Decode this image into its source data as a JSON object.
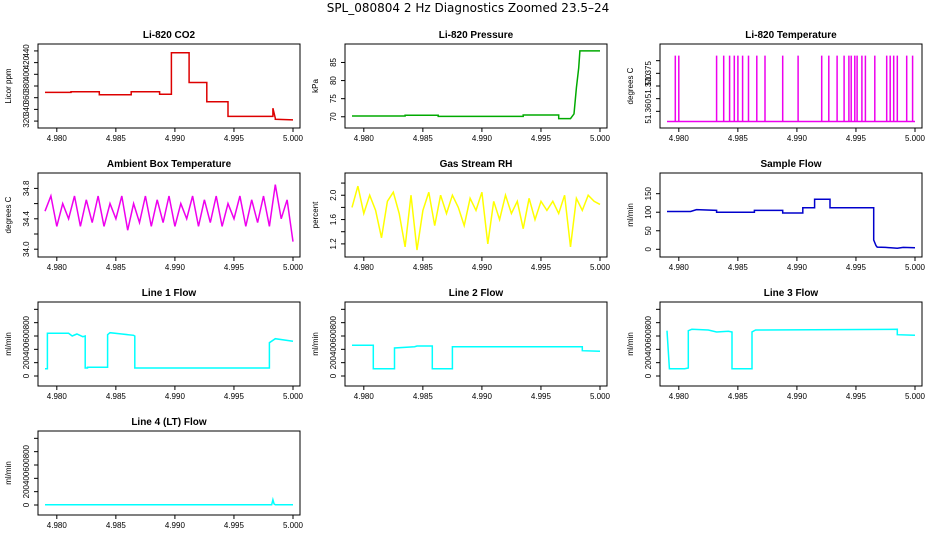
{
  "title": "SPL_080804  2 Hz Diagnostics Zoomed 23.5–24",
  "chart_data": [
    {
      "type": "line",
      "title": "Li-820 CO2",
      "ylabel": "Licor ppm",
      "color": "#dd0000",
      "xlim": [
        4.979,
        5.0
      ],
      "xticks": [
        "4.980",
        "4.985",
        "4.990",
        "4.995",
        "5.000"
      ],
      "ylim": [
        315,
        445
      ],
      "yticks": [
        320,
        340,
        360,
        380,
        400,
        420,
        440
      ],
      "x": [
        4.979,
        4.9812,
        4.9812,
        4.9836,
        4.9836,
        4.9863,
        4.9863,
        4.9887,
        4.9887,
        4.9897,
        4.9897,
        4.9912,
        4.9912,
        4.9927,
        4.9927,
        4.9945,
        4.9945,
        4.9983,
        4.9983,
        4.9985,
        4.9985,
        5.0
      ],
      "y": [
        369,
        369,
        370,
        370,
        365,
        365,
        370,
        370,
        366,
        366,
        437,
        437,
        386,
        386,
        353,
        353,
        328,
        328,
        342,
        325,
        323,
        322
      ]
    },
    {
      "type": "line",
      "title": "Li-820 Pressure",
      "ylabel": "kPa",
      "color": "#00aa00",
      "xlim": [
        4.979,
        5.0
      ],
      "xticks": [
        "4.980",
        "4.985",
        "4.990",
        "4.995",
        "5.000"
      ],
      "ylim": [
        68,
        89
      ],
      "yticks": [
        70,
        75,
        80,
        85
      ],
      "x": [
        4.979,
        4.9835,
        4.9835,
        4.9863,
        4.9863,
        4.9935,
        4.9935,
        4.9965,
        4.9965,
        4.9975,
        4.9978,
        4.998,
        4.9982,
        4.9983,
        5.0
      ],
      "y": [
        70.2,
        70.2,
        70.4,
        70.4,
        70.1,
        70.1,
        70.5,
        70.5,
        69.5,
        69.5,
        70.8,
        78,
        83.5,
        88.2,
        88.2
      ]
    },
    {
      "type": "line",
      "title": "Li-820 Temperature",
      "ylabel": "degrees C",
      "color": "#ee00ee",
      "xlim": [
        4.979,
        5.0
      ],
      "xticks": [
        "4.980",
        "4.985",
        "4.990",
        "4.995",
        "5.000"
      ],
      "ylim": [
        51.355,
        51.385
      ],
      "yticks": [
        51.36,
        51.365,
        51.37,
        51.375,
        51.38
      ],
      "yticklabels": [
        "51.360",
        "",
        "51.370",
        "51.375",
        ""
      ],
      "x": [
        4.979,
        4.9797,
        4.9797,
        4.9797,
        4.98,
        4.98,
        4.98,
        4.9832,
        4.9832,
        4.9832,
        4.9838,
        4.9838,
        4.9838,
        4.9843,
        4.9843,
        4.9843,
        4.9847,
        4.9847,
        4.9847,
        4.985,
        4.985,
        4.985,
        4.9854,
        4.9854,
        4.9854,
        4.9859,
        4.9859,
        4.9859,
        4.9866,
        4.9866,
        4.9866,
        4.9873,
        4.9873,
        4.9873,
        4.9888,
        4.9888,
        4.9888,
        4.9901,
        4.9901,
        4.9901,
        4.9921,
        4.9921,
        4.9921,
        4.9927,
        4.9927,
        4.9927,
        4.9934,
        4.9934,
        4.9934,
        4.994,
        4.994,
        4.994,
        4.9944,
        4.9944,
        4.9944,
        4.9946,
        4.9946,
        4.9946,
        4.9949,
        4.9949,
        4.9949,
        4.9951,
        4.9951,
        4.9951,
        4.9955,
        4.9955,
        4.9955,
        4.9958,
        4.9958,
        4.9958,
        4.9966,
        4.9966,
        4.9966,
        4.9976,
        4.9976,
        4.9976,
        4.9979,
        4.9979,
        4.9979,
        4.9982,
        4.9982,
        4.9982,
        4.9985,
        4.9985,
        4.9985,
        4.9993,
        4.9993,
        4.9993,
        4.9998,
        4.9998,
        4.9998,
        5.0
      ],
      "y": [
        51.356,
        51.356,
        51.382,
        51.356,
        51.356,
        51.382,
        51.356,
        51.356,
        51.382,
        51.356,
        51.356,
        51.382,
        51.356,
        51.356,
        51.382,
        51.356,
        51.356,
        51.382,
        51.356,
        51.356,
        51.382,
        51.356,
        51.356,
        51.382,
        51.356,
        51.356,
        51.382,
        51.356,
        51.356,
        51.382,
        51.356,
        51.356,
        51.382,
        51.356,
        51.356,
        51.382,
        51.356,
        51.356,
        51.382,
        51.356,
        51.356,
        51.382,
        51.356,
        51.356,
        51.382,
        51.356,
        51.356,
        51.382,
        51.356,
        51.356,
        51.382,
        51.356,
        51.356,
        51.382,
        51.356,
        51.356,
        51.382,
        51.356,
        51.356,
        51.382,
        51.356,
        51.356,
        51.382,
        51.356,
        51.356,
        51.382,
        51.356,
        51.356,
        51.382,
        51.356,
        51.356,
        51.382,
        51.356,
        51.356,
        51.382,
        51.356,
        51.356,
        51.382,
        51.356,
        51.356,
        51.382,
        51.356,
        51.356,
        51.382,
        51.356,
        51.356,
        51.382,
        51.356,
        51.356,
        51.382,
        51.356,
        51.356
      ]
    },
    {
      "type": "line",
      "title": "Ambient Box Temperature",
      "ylabel": "degrees C",
      "color": "#ee00ee",
      "xlim": [
        4.979,
        5.0
      ],
      "xticks": [
        "4.980",
        "4.985",
        "4.990",
        "4.995",
        "5.000"
      ],
      "ylim": [
        33.95,
        34.95
      ],
      "yticks": [
        34.0,
        34.2,
        34.4,
        34.6,
        34.8
      ],
      "yticklabels": [
        "34.0",
        "",
        "34.4",
        "",
        "34.8"
      ],
      "x": [
        4.979,
        4.9795,
        4.98,
        4.9805,
        4.981,
        4.9815,
        4.982,
        4.9825,
        4.983,
        4.9835,
        4.984,
        4.9845,
        4.985,
        4.9855,
        4.986,
        4.9865,
        4.987,
        4.9875,
        4.988,
        4.9885,
        4.989,
        4.9895,
        4.99,
        4.9905,
        4.991,
        4.9915,
        4.992,
        4.9925,
        4.993,
        4.9935,
        4.994,
        4.9945,
        4.995,
        4.9955,
        4.996,
        4.9965,
        4.997,
        4.9975,
        4.998,
        4.9985,
        4.999,
        4.9995,
        5.0
      ],
      "y": [
        34.5,
        34.7,
        34.3,
        34.6,
        34.4,
        34.7,
        34.3,
        34.65,
        34.35,
        34.7,
        34.3,
        34.6,
        34.4,
        34.7,
        34.25,
        34.6,
        34.35,
        34.7,
        34.3,
        34.65,
        34.35,
        34.7,
        34.3,
        34.6,
        34.4,
        34.7,
        34.3,
        34.65,
        34.35,
        34.7,
        34.3,
        34.6,
        34.4,
        34.7,
        34.3,
        34.65,
        34.35,
        34.7,
        34.3,
        34.85,
        34.4,
        34.65,
        34.1
      ]
    },
    {
      "type": "line",
      "title": "Gas Stream RH",
      "ylabel": "percent",
      "color": "#ffff00",
      "xlim": [
        4.979,
        5.0
      ],
      "xticks": [
        "4.980",
        "4.985",
        "4.990",
        "4.995",
        "5.000"
      ],
      "ylim": [
        1.05,
        2.3
      ],
      "yticks": [
        1.2,
        1.4,
        1.6,
        1.8,
        2.0,
        2.2
      ],
      "yticklabels": [
        "1.2",
        "",
        "1.6",
        "",
        "2.0",
        ""
      ],
      "x": [
        4.979,
        4.9795,
        4.98,
        4.9805,
        4.981,
        4.9815,
        4.982,
        4.9825,
        4.983,
        4.9835,
        4.984,
        4.9845,
        4.985,
        4.9855,
        4.986,
        4.9865,
        4.987,
        4.9875,
        4.988,
        4.9885,
        4.989,
        4.9895,
        4.99,
        4.9905,
        4.991,
        4.9915,
        4.992,
        4.9925,
        4.993,
        4.9935,
        4.994,
        4.9945,
        4.995,
        4.9955,
        4.996,
        4.9965,
        4.997,
        4.9975,
        4.998,
        4.9985,
        4.999,
        4.9995,
        5.0
      ],
      "y": [
        1.8,
        2.15,
        1.7,
        2.0,
        1.75,
        1.3,
        1.9,
        2.05,
        1.7,
        1.15,
        2.0,
        1.1,
        1.75,
        2.05,
        1.5,
        2.0,
        1.7,
        2.0,
        1.8,
        1.5,
        1.95,
        1.75,
        2.05,
        1.2,
        1.9,
        1.6,
        2.0,
        1.7,
        1.9,
        1.45,
        1.95,
        1.6,
        1.9,
        1.75,
        1.9,
        1.7,
        2.0,
        1.15,
        1.95,
        1.75,
        2.0,
        1.9,
        1.85
      ]
    },
    {
      "type": "line",
      "title": "Sample Flow",
      "ylabel": "ml/min",
      "color": "#0000cc",
      "xlim": [
        4.979,
        5.0
      ],
      "xticks": [
        "4.980",
        "4.985",
        "4.990",
        "4.995",
        "5.000"
      ],
      "ylim": [
        -10,
        195
      ],
      "yticks": [
        0,
        50,
        100,
        150
      ],
      "x": [
        4.979,
        4.981,
        4.9815,
        4.9832,
        4.9832,
        4.9864,
        4.9864,
        4.9888,
        4.9888,
        4.9905,
        4.9905,
        4.9915,
        4.9915,
        4.9928,
        4.9928,
        4.9965,
        4.9965,
        4.9967,
        4.9968,
        4.9975,
        4.9985,
        4.999,
        5.0
      ],
      "y": [
        102,
        102,
        107,
        105,
        100,
        100,
        105,
        105,
        98,
        98,
        112,
        112,
        135,
        135,
        112,
        112,
        25,
        10,
        6,
        5,
        3,
        5,
        4
      ]
    },
    {
      "type": "line",
      "title": "Line 1 Flow",
      "ylabel": "ml/min",
      "color": "#00ffff",
      "xlim": [
        4.979,
        5.0
      ],
      "xticks": [
        "4.980",
        "4.985",
        "4.990",
        "4.995",
        "5.000"
      ],
      "ylim": [
        -90,
        1050
      ],
      "yticks": [
        0,
        200,
        400,
        600,
        800,
        1000
      ],
      "yticklabels": [
        "0",
        "200",
        "400",
        "600",
        "800",
        ""
      ],
      "x": [
        4.979,
        4.9792,
        4.9792,
        4.981,
        4.9813,
        4.9817,
        4.9822,
        4.9824,
        4.9824,
        4.9826,
        4.9826,
        4.9843,
        4.9843,
        4.9845,
        4.9855,
        4.9865,
        4.9866,
        4.9866,
        4.998,
        4.998,
        4.9985,
        5.0
      ],
      "y": [
        110,
        110,
        640,
        640,
        600,
        630,
        590,
        600,
        120,
        120,
        130,
        130,
        620,
        650,
        630,
        610,
        600,
        120,
        120,
        500,
        560,
        520
      ]
    },
    {
      "type": "line",
      "title": "Line 2 Flow",
      "ylabel": "ml/min",
      "color": "#00ffff",
      "xlim": [
        4.979,
        5.0
      ],
      "xticks": [
        "4.980",
        "4.985",
        "4.990",
        "4.995",
        "5.000"
      ],
      "ylim": [
        -90,
        1050
      ],
      "yticks": [
        0,
        200,
        400,
        600,
        800,
        1000
      ],
      "yticklabels": [
        "0",
        "200",
        "400",
        "600",
        "800",
        ""
      ],
      "x": [
        4.979,
        4.9808,
        4.9808,
        4.9826,
        4.9826,
        4.9843,
        4.9845,
        4.9858,
        4.9858,
        4.9875,
        4.9875,
        4.9985,
        4.9985,
        5.0
      ],
      "y": [
        460,
        460,
        110,
        110,
        420,
        440,
        450,
        450,
        110,
        110,
        440,
        440,
        380,
        370
      ]
    },
    {
      "type": "line",
      "title": "Line 3 Flow",
      "ylabel": "ml/min",
      "color": "#00ffff",
      "xlim": [
        4.979,
        5.0
      ],
      "xticks": [
        "4.980",
        "4.985",
        "4.990",
        "4.995",
        "5.000"
      ],
      "ylim": [
        -90,
        1050
      ],
      "yticks": [
        0,
        200,
        400,
        600,
        800,
        1000
      ],
      "yticklabels": [
        "0",
        "200",
        "400",
        "600",
        "800",
        ""
      ],
      "x": [
        4.979,
        4.9792,
        4.9792,
        4.9805,
        4.9808,
        4.9808,
        4.9811,
        4.9825,
        4.9832,
        4.9842,
        4.9845,
        4.9845,
        4.9862,
        4.9862,
        4.9865,
        4.9985,
        4.9985,
        5.0
      ],
      "y": [
        680,
        110,
        110,
        110,
        120,
        680,
        700,
        690,
        660,
        670,
        660,
        110,
        110,
        660,
        690,
        700,
        620,
        610
      ]
    },
    {
      "type": "line",
      "title": "Line 4 (LT) Flow",
      "ylabel": "ml/min",
      "color": "#00ffff",
      "xlim": [
        4.979,
        5.0
      ],
      "xticks": [
        "4.980",
        "4.985",
        "4.990",
        "4.995",
        "5.000"
      ],
      "ylim": [
        -90,
        1050
      ],
      "yticks": [
        0,
        200,
        400,
        600,
        800,
        1000
      ],
      "yticklabels": [
        "0",
        "200",
        "400",
        "600",
        "800",
        ""
      ],
      "x": [
        4.979,
        4.9982,
        4.9983,
        4.9984,
        4.9985,
        5.0
      ],
      "y": [
        5,
        5,
        80,
        15,
        5,
        5
      ]
    }
  ]
}
